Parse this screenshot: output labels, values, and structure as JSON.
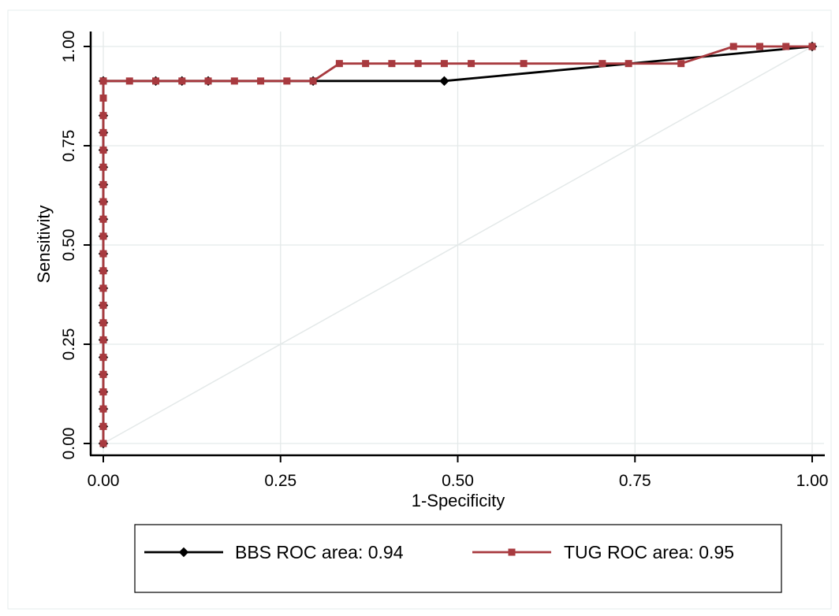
{
  "chart_data": {
    "type": "line",
    "xlabel": "1-Specificity",
    "ylabel": "Sensitivity",
    "xlim": [
      0,
      1
    ],
    "ylim": [
      0,
      1
    ],
    "xticks": [
      "0.00",
      "0.25",
      "0.50",
      "0.75",
      "1.00"
    ],
    "yticks": [
      "0.00",
      "0.25",
      "0.50",
      "0.75",
      "1.00"
    ],
    "grid": true,
    "reference_line": true,
    "legend_position": "bottom",
    "series": [
      {
        "name": "BBS ROC area: 0.94",
        "color": "#000000",
        "marker": "diamond",
        "x": [
          0,
          0,
          0,
          0,
          0,
          0,
          0,
          0,
          0,
          0,
          0,
          0,
          0,
          0,
          0,
          0,
          0,
          0,
          0,
          0,
          0,
          0.074,
          0.111,
          0.148,
          0.296,
          0.481,
          1.0
        ],
        "y": [
          0,
          0.043,
          0.087,
          0.13,
          0.174,
          0.217,
          0.261,
          0.304,
          0.348,
          0.391,
          0.435,
          0.478,
          0.522,
          0.565,
          0.609,
          0.652,
          0.696,
          0.739,
          0.783,
          0.826,
          0.913,
          0.913,
          0.913,
          0.913,
          0.913,
          0.913,
          1.0
        ]
      },
      {
        "name": "TUG ROC area: 0.95",
        "color": "#a83a3f",
        "marker": "square",
        "x": [
          0,
          0,
          0,
          0,
          0,
          0,
          0,
          0,
          0,
          0,
          0,
          0,
          0,
          0,
          0,
          0,
          0,
          0,
          0,
          0,
          0,
          0,
          0,
          0.037,
          0.074,
          0.111,
          0.148,
          0.185,
          0.222,
          0.259,
          0.296,
          0.333,
          0.37,
          0.407,
          0.444,
          0.481,
          0.519,
          0.593,
          0.704,
          0.741,
          0.815,
          0.889,
          0.926,
          0.963,
          1.0
        ],
        "y": [
          0,
          0.043,
          0.087,
          0.13,
          0.174,
          0.217,
          0.261,
          0.304,
          0.348,
          0.391,
          0.435,
          0.478,
          0.522,
          0.565,
          0.609,
          0.652,
          0.696,
          0.739,
          0.783,
          0.826,
          0.87,
          0.913,
          0.913,
          0.913,
          0.913,
          0.913,
          0.913,
          0.913,
          0.913,
          0.913,
          0.913,
          0.957,
          0.957,
          0.957,
          0.957,
          0.957,
          0.957,
          0.957,
          0.957,
          0.957,
          0.957,
          1.0,
          1.0,
          1.0,
          1.0
        ]
      }
    ]
  }
}
